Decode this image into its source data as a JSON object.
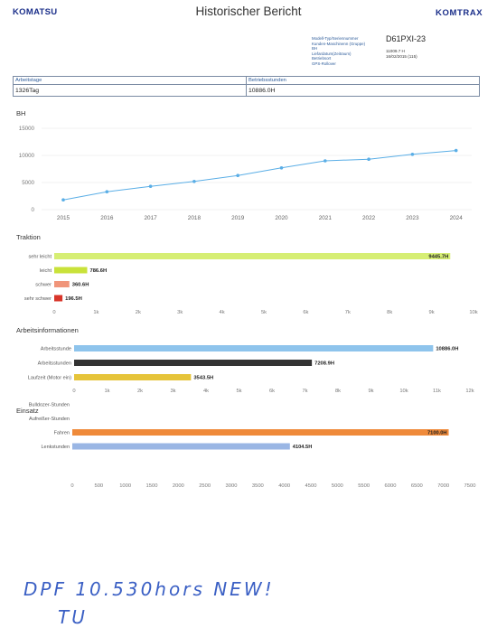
{
  "header": {
    "logo_left": "KOMATSU",
    "title": "Historischer Bericht",
    "logo_right": "KOMTRAX",
    "model_value": "D61PXI-23",
    "meta_labels": [
      "Modell-Typ/Seriennummer",
      "Kunden-Maschinenn (Gruppe)",
      "BH",
      "Liefardatum(Zeitraum)",
      "Betriebsort",
      "GPS-Rollover"
    ],
    "meta_values": [
      "",
      "",
      "11009.7 H",
      "16/02/2015 (115)",
      "",
      ""
    ]
  },
  "summary": {
    "col1_label": "Arbeitstage",
    "col2_label": "Betriebsstunden",
    "col1_value": "1326Tag",
    "col2_value": "10886.0H"
  },
  "sections": {
    "bh": "BH",
    "traktion": "Traktion",
    "arbeit": "Arbeitsinformationen",
    "einsatz": "Einsatz"
  },
  "chart_data": [
    {
      "type": "line",
      "title": "BH",
      "x": [
        "2015",
        "2016",
        "2017",
        "2018",
        "2019",
        "2020",
        "2021",
        "2022",
        "2023",
        "2024"
      ],
      "values": [
        1800,
        3300,
        4300,
        5200,
        6300,
        7700,
        9000,
        9300,
        10200,
        10900
      ],
      "ylim": [
        0,
        15000
      ],
      "yticks": [
        "15000",
        "10000",
        "5000",
        "0"
      ],
      "color": "#5aaee6",
      "grid": true
    },
    {
      "type": "bar",
      "orientation": "horizontal",
      "title": "Traktion",
      "categories": [
        "sehr leicht",
        "leicht",
        "schwer",
        "sehr schwer"
      ],
      "values": [
        9445.7,
        786.6,
        360.6,
        196.5
      ],
      "labels": [
        "9445.7H",
        "786.6H",
        "360.6H",
        "196.5H"
      ],
      "colors": [
        "#d6ee74",
        "#c9e23a",
        "#f0957a",
        "#d8352a"
      ],
      "xlim": [
        0,
        10000
      ],
      "xticks": [
        "0",
        "1k",
        "2k",
        "3k",
        "4k",
        "5k",
        "6k",
        "7k",
        "8k",
        "9k",
        "10k"
      ]
    },
    {
      "type": "bar",
      "orientation": "horizontal",
      "title": "Arbeitsinformationen",
      "categories": [
        "Arbeitsstunde",
        "Arbeitsstunden",
        "Laufzeit (Motor ein)"
      ],
      "values": [
        10886.0,
        7208.9,
        3543.5
      ],
      "labels": [
        "10886.0H",
        "7208.9H",
        "3543.5H"
      ],
      "colors": [
        "#8ec4ec",
        "#333333",
        "#e6c43a"
      ],
      "xlim": [
        0,
        12000
      ],
      "xticks": [
        "0",
        "1k",
        "2k",
        "3k",
        "4k",
        "5k",
        "6k",
        "7k",
        "8k",
        "9k",
        "10k",
        "11k",
        "12k"
      ]
    },
    {
      "type": "bar",
      "orientation": "horizontal",
      "title": "Einsatz",
      "categories": [
        "Bulldozer-Stunden",
        "Aufreißer-Stunden",
        "Fahren",
        "Lenkstunden"
      ],
      "values": [
        0,
        0,
        7100,
        4104.5
      ],
      "labels": [
        "",
        "",
        "7100.0H",
        "4104.5H"
      ],
      "colors": [
        "#7fb0e0",
        "#7fb0e0",
        "#ef8a3a",
        "#9ab6e4"
      ],
      "xlim": [
        0,
        7500
      ],
      "xticks": [
        "0",
        "500",
        "1000",
        "1500",
        "2000",
        "2500",
        "3000",
        "3500",
        "4000",
        "4500",
        "5000",
        "5500",
        "6000",
        "6500",
        "7000",
        "7500"
      ]
    }
  ],
  "handwriting": {
    "line1": "DPF 10.530hors NEW!",
    "line2": "TU"
  }
}
